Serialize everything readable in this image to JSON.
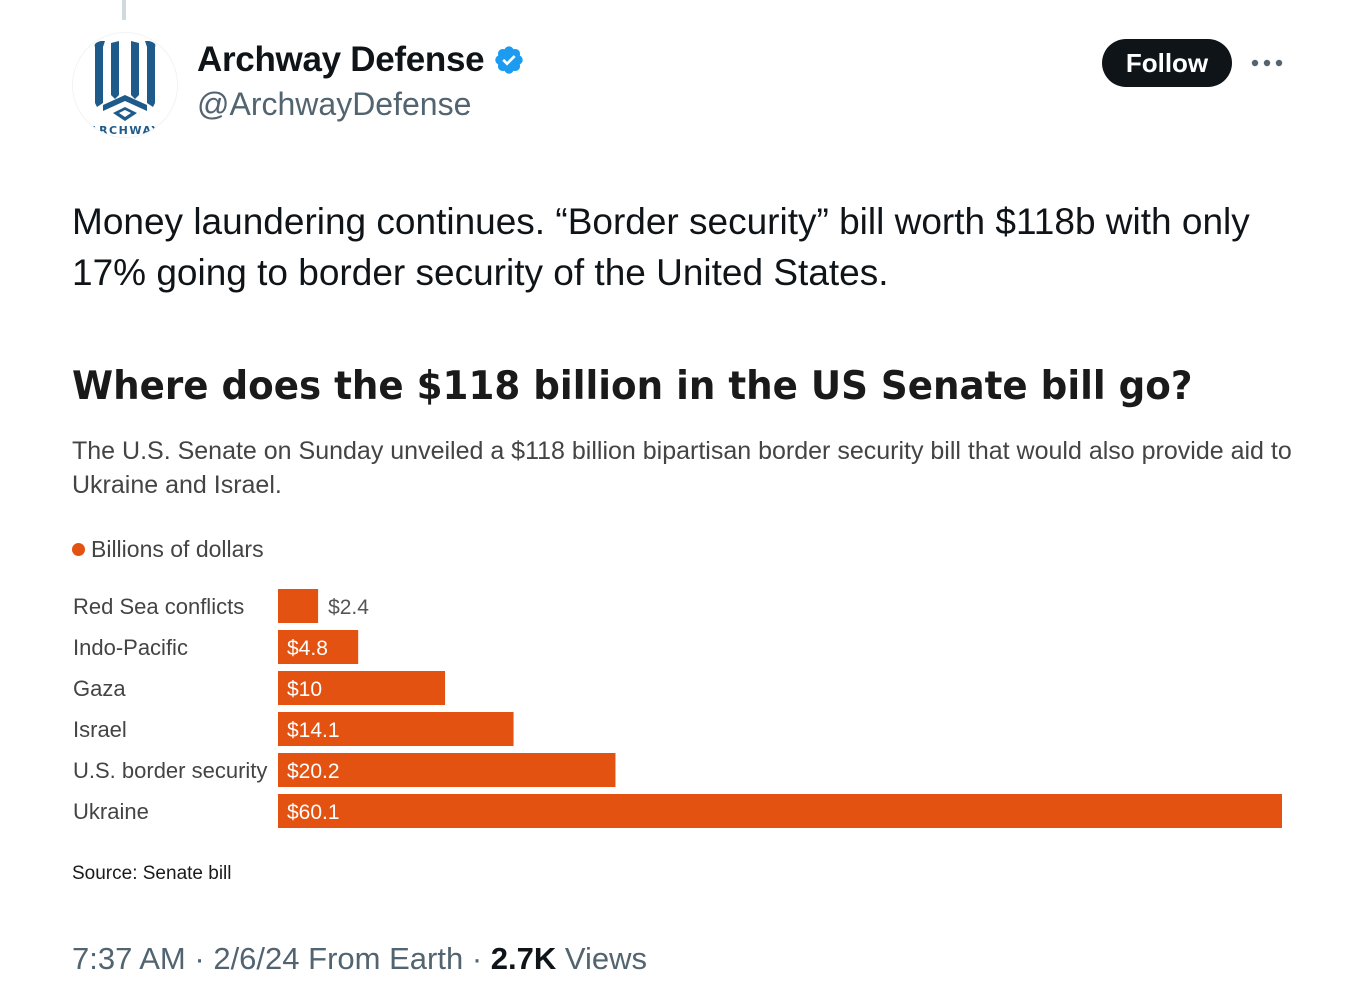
{
  "account": {
    "display_name": "Archway Defense",
    "handle": "@ArchwayDefense",
    "avatar_text": "ARCHWAY",
    "verified_icon": "verified-badge-icon",
    "verified_color": "#1d9bf0"
  },
  "actions": {
    "follow_label": "Follow",
    "more_icon": "more-options-icon"
  },
  "tweet": {
    "text": "Money laundering continues. “Border security” bill worth $118b with only 17% going to border security of the United States."
  },
  "graphic": {
    "title": "Where does the $118 billion in the US Senate bill go?",
    "subtitle": "The U.S. Senate on Sunday unveiled a $118 billion bipartisan border security bill that would also provide aid to Ukraine and Israel.",
    "legend_label": "Billions of dollars",
    "source": "Source: Senate bill"
  },
  "chart_data": {
    "type": "bar",
    "orientation": "horizontal",
    "categories": [
      "Red Sea conflicts",
      "Indo-Pacific",
      "Gaza",
      "Israel",
      "U.S. border security",
      "Ukraine"
    ],
    "values": [
      2.4,
      4.8,
      10,
      14.1,
      20.2,
      60.1
    ],
    "value_labels": [
      "$2.4",
      "$4.8",
      "$10",
      "$14.1",
      "$20.2",
      "$60.1"
    ],
    "legend": [
      "Billions of dollars"
    ],
    "bar_color": "#e35211",
    "xlim": [
      0,
      60.1
    ],
    "grid": false
  },
  "meta": {
    "time": "7:37 AM",
    "separator": "·",
    "date": "2/6/24",
    "location": "From Earth",
    "views_count": "2.7K",
    "views_label": "Views"
  }
}
